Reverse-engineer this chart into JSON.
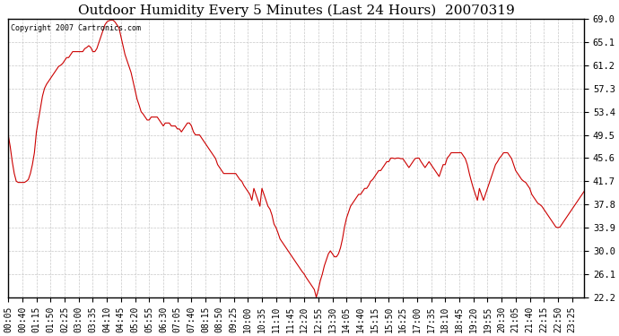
{
  "title": "Outdoor Humidity Every 5 Minutes (Last 24 Hours)  20070319",
  "copyright": "Copyright 2007 Cartronics.com",
  "background_color": "#ffffff",
  "line_color": "#cc0000",
  "grid_color": "#c8c8c8",
  "yticks": [
    22.2,
    26.1,
    30.0,
    33.9,
    37.8,
    41.7,
    45.6,
    49.5,
    53.4,
    57.3,
    61.2,
    65.1,
    69.0
  ],
  "ylim": [
    22.2,
    69.0
  ],
  "x_label_step": 7,
  "x_labels": [
    "00:05",
    "00:40",
    "01:15",
    "01:50",
    "02:25",
    "03:00",
    "03:35",
    "04:10",
    "04:45",
    "05:20",
    "05:55",
    "06:30",
    "07:05",
    "07:40",
    "08:15",
    "08:50",
    "09:25",
    "10:00",
    "10:35",
    "11:10",
    "11:45",
    "12:20",
    "12:55",
    "13:30",
    "14:05",
    "14:40",
    "15:15",
    "15:50",
    "16:25",
    "17:00",
    "17:35",
    "18:10",
    "18:45",
    "19:20",
    "19:55",
    "20:30",
    "21:05",
    "21:40",
    "22:15",
    "22:50",
    "23:25"
  ],
  "y_values": [
    49.5,
    47.5,
    45.0,
    43.0,
    41.7,
    41.5,
    41.5,
    41.5,
    41.5,
    41.7,
    42.0,
    43.0,
    44.5,
    46.5,
    50.0,
    52.0,
    54.0,
    56.0,
    57.3,
    58.0,
    58.5,
    59.0,
    59.5,
    60.0,
    60.5,
    61.0,
    61.2,
    61.5,
    62.0,
    62.5,
    62.5,
    63.0,
    63.5,
    63.5,
    63.5,
    63.5,
    63.5,
    63.5,
    64.0,
    64.2,
    64.5,
    64.2,
    63.5,
    63.5,
    64.0,
    65.0,
    66.0,
    67.0,
    68.0,
    68.5,
    68.7,
    68.8,
    68.8,
    68.5,
    68.0,
    67.5,
    66.0,
    64.5,
    63.0,
    62.0,
    61.0,
    60.0,
    58.5,
    57.0,
    55.5,
    54.5,
    53.4,
    53.0,
    52.5,
    52.0,
    52.0,
    52.5,
    52.5,
    52.5,
    52.5,
    52.0,
    51.5,
    51.0,
    51.5,
    51.5,
    51.5,
    51.0,
    51.0,
    51.0,
    50.5,
    50.5,
    50.0,
    50.5,
    51.0,
    51.5,
    51.5,
    51.0,
    50.0,
    49.5,
    49.5,
    49.5,
    49.0,
    48.5,
    48.0,
    47.5,
    47.0,
    46.5,
    46.0,
    45.5,
    44.5,
    44.0,
    43.5,
    43.0,
    43.0,
    43.0,
    43.0,
    43.0,
    43.0,
    43.0,
    42.5,
    42.0,
    41.7,
    41.0,
    40.5,
    40.0,
    39.5,
    38.5,
    40.5,
    39.5,
    38.5,
    37.5,
    40.5,
    39.5,
    38.5,
    37.5,
    37.0,
    36.0,
    34.5,
    33.9,
    33.0,
    32.0,
    31.5,
    31.0,
    30.5,
    30.0,
    29.5,
    29.0,
    28.5,
    28.0,
    27.5,
    27.0,
    26.5,
    26.1,
    25.5,
    25.0,
    24.5,
    24.0,
    23.5,
    22.2,
    23.5,
    25.0,
    26.1,
    27.5,
    28.5,
    29.5,
    30.0,
    29.5,
    29.0,
    29.0,
    29.5,
    30.5,
    32.0,
    34.0,
    35.5,
    36.5,
    37.5,
    38.0,
    38.5,
    39.0,
    39.5,
    39.5,
    40.0,
    40.5,
    40.5,
    41.0,
    41.7,
    42.0,
    42.5,
    43.0,
    43.5,
    43.5,
    44.0,
    44.5,
    45.0,
    45.0,
    45.6,
    45.6,
    45.5,
    45.6,
    45.6,
    45.5,
    45.5,
    45.0,
    44.5,
    44.0,
    44.5,
    45.0,
    45.5,
    45.6,
    45.6,
    45.0,
    44.5,
    44.0,
    44.5,
    45.0,
    44.5,
    44.0,
    43.5,
    43.0,
    42.5,
    43.5,
    44.5,
    44.5,
    45.6,
    46.0,
    46.5,
    46.5,
    46.5,
    46.5,
    46.5,
    46.5,
    46.0,
    45.5,
    44.5,
    43.0,
    41.7,
    40.5,
    39.5,
    38.5,
    40.5,
    39.5,
    38.5,
    39.5,
    40.5,
    41.5,
    42.5,
    43.5,
    44.5,
    45.0,
    45.6,
    46.0,
    46.5,
    46.5,
    46.5,
    46.0,
    45.5,
    44.5,
    43.5,
    43.0,
    42.5,
    42.0,
    41.7,
    41.5,
    41.0,
    40.5,
    39.5,
    39.0,
    38.5,
    38.0,
    37.8,
    37.5,
    37.0,
    36.5,
    36.0,
    35.5,
    35.0,
    34.5,
    34.0,
    33.9,
    34.0,
    34.5,
    35.0,
    35.5,
    36.0,
    36.5,
    37.0,
    37.5,
    38.0,
    38.5,
    39.0,
    39.5,
    40.0
  ],
  "title_fontsize": 11,
  "tick_fontsize": 7,
  "figwidth": 6.9,
  "figheight": 3.75,
  "dpi": 100
}
